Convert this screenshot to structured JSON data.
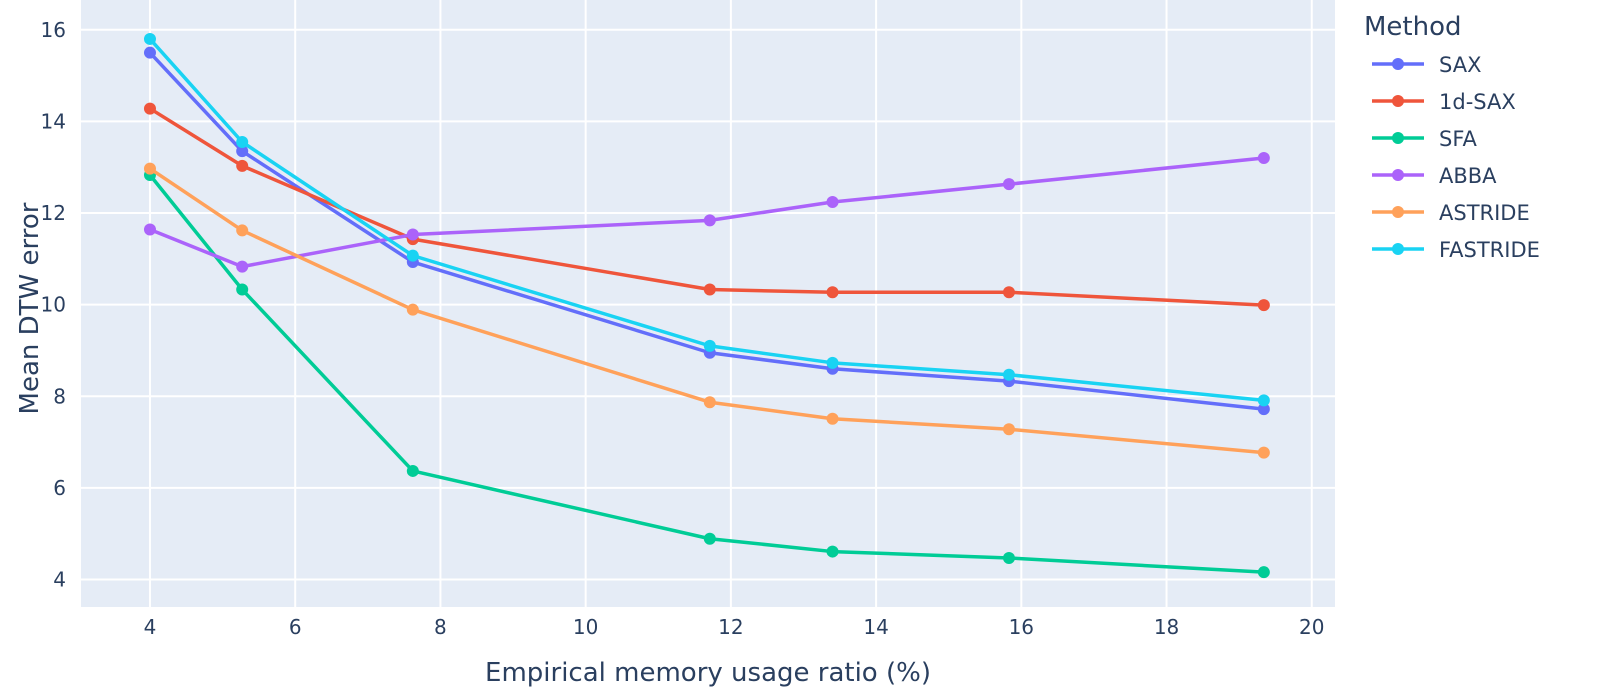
{
  "chart_data": {
    "type": "line",
    "title": "",
    "xlabel": "Empirical memory usage ratio (%)",
    "ylabel": "Mean DTW error",
    "x": [
      4.0,
      5.27,
      7.62,
      11.71,
      13.4,
      15.83,
      19.34
    ],
    "xlim": [
      3.05,
      20.32
    ],
    "ylim": [
      3.4,
      16.65
    ],
    "xticks": [
      4,
      6,
      8,
      10,
      12,
      14,
      16,
      18,
      20
    ],
    "yticks": [
      4,
      6,
      8,
      10,
      12,
      14,
      16
    ],
    "grid": true,
    "legend": {
      "title": "Method",
      "placement": "right"
    },
    "series": [
      {
        "name": "SAX",
        "color": "#636efa",
        "values": [
          15.5,
          13.35,
          10.93,
          8.95,
          8.6,
          8.33,
          7.72
        ]
      },
      {
        "name": "1d-SAX",
        "color": "#ef553b",
        "values": [
          14.28,
          13.03,
          11.43,
          10.33,
          10.27,
          10.27,
          9.99
        ]
      },
      {
        "name": "SFA",
        "color": "#00cc96",
        "values": [
          12.83,
          10.33,
          6.37,
          4.89,
          4.61,
          4.47,
          4.16
        ]
      },
      {
        "name": "ABBA",
        "color": "#ab63fa",
        "values": [
          11.64,
          10.83,
          11.53,
          11.84,
          12.24,
          12.63,
          13.2
        ]
      },
      {
        "name": "ASTRIDE",
        "color": "#ffa15a",
        "values": [
          12.97,
          11.62,
          9.89,
          7.87,
          7.51,
          7.28,
          6.77
        ]
      },
      {
        "name": "FASTRIDE",
        "color": "#19d3f3",
        "values": [
          15.8,
          13.55,
          11.07,
          9.1,
          8.73,
          8.47,
          7.91
        ]
      }
    ]
  }
}
